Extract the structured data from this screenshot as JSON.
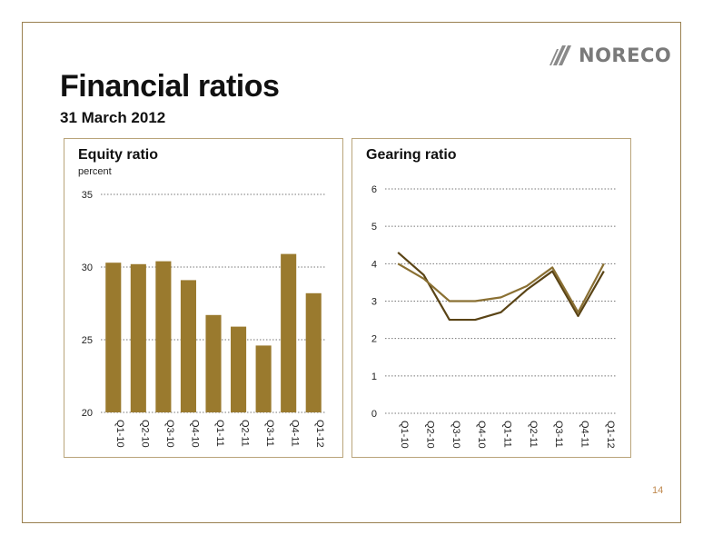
{
  "header": {
    "title": "Financial ratios",
    "subtitle": "31 March 2012",
    "logo_text": "NORECO"
  },
  "page_number": "14",
  "colors": {
    "frame": "#9a8050",
    "bar": "#9a7a2e",
    "line_dark": "#5a4416",
    "line_light": "#8a7033",
    "page_number": "#c08a50"
  },
  "chart_data": [
    {
      "type": "bar",
      "title": "Equity ratio",
      "ylabel": "percent",
      "categories": [
        "Q1-10",
        "Q2-10",
        "Q3-10",
        "Q4-10",
        "Q1-11",
        "Q2-11",
        "Q3-11",
        "Q4-11",
        "Q1-12"
      ],
      "values": [
        30.3,
        30.2,
        30.4,
        29.1,
        26.7,
        25.9,
        24.6,
        30.9,
        28.2
      ],
      "ylim": [
        20,
        35
      ],
      "yticks": [
        20,
        25,
        30,
        35
      ],
      "grid": true
    },
    {
      "type": "line",
      "title": "Gearing ratio",
      "categories": [
        "Q1-10",
        "Q2-10",
        "Q3-10",
        "Q4-10",
        "Q1-11",
        "Q2-11",
        "Q3-11",
        "Q4-11",
        "Q1-12"
      ],
      "series": [
        {
          "values": [
            4.3,
            3.7,
            2.5,
            2.5,
            2.7,
            3.3,
            3.8,
            2.6,
            3.8
          ]
        },
        {
          "values": [
            4.0,
            3.6,
            3.0,
            3.0,
            3.1,
            3.4,
            3.9,
            2.7,
            4.0
          ]
        }
      ],
      "ylim": [
        0,
        6
      ],
      "yticks": [
        0,
        1,
        2,
        3,
        4,
        5,
        6
      ],
      "grid": true
    }
  ]
}
